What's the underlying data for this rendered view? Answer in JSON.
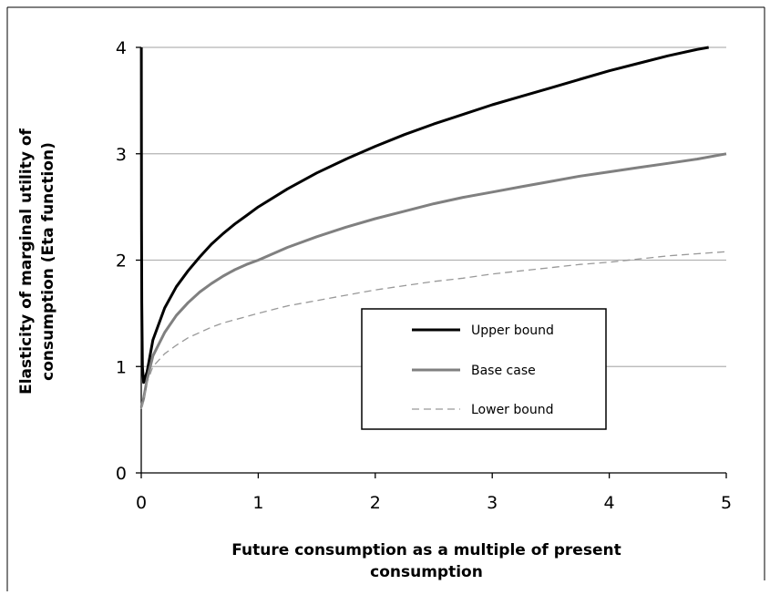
{
  "chart_data": {
    "type": "line",
    "title": "",
    "xlabel": [
      "Future consumption as a multiple of present",
      "consumption"
    ],
    "ylabel": [
      "Elasticity of marginal utility of",
      "consumption (Eta function)"
    ],
    "xlim": [
      0,
      5
    ],
    "ylim": [
      0,
      4
    ],
    "x_ticks": [
      "0",
      "1",
      "2",
      "3",
      "4",
      "5"
    ],
    "y_ticks": [
      "0",
      "1",
      "2",
      "3",
      "4"
    ],
    "grid": "horizontal",
    "legend_position": "center-right",
    "series": [
      {
        "name": "Upper bound",
        "color": "#000000",
        "style": "solid",
        "points": [
          [
            0.001,
            4.0
          ],
          [
            0.002,
            2.4
          ],
          [
            0.005,
            1.6
          ],
          [
            0.01,
            1.0
          ],
          [
            0.02,
            0.85
          ],
          [
            0.05,
            0.95
          ],
          [
            0.1,
            1.25
          ],
          [
            0.2,
            1.55
          ],
          [
            0.3,
            1.75
          ],
          [
            0.4,
            1.9
          ],
          [
            0.5,
            2.03
          ],
          [
            0.6,
            2.15
          ],
          [
            0.7,
            2.25
          ],
          [
            0.8,
            2.34
          ],
          [
            0.9,
            2.42
          ],
          [
            1.0,
            2.5
          ],
          [
            1.25,
            2.67
          ],
          [
            1.5,
            2.82
          ],
          [
            1.75,
            2.95
          ],
          [
            2.0,
            3.07
          ],
          [
            2.25,
            3.18
          ],
          [
            2.5,
            3.28
          ],
          [
            2.75,
            3.37
          ],
          [
            3.0,
            3.46
          ],
          [
            3.25,
            3.54
          ],
          [
            3.5,
            3.62
          ],
          [
            3.75,
            3.7
          ],
          [
            4.0,
            3.78
          ],
          [
            4.25,
            3.85
          ],
          [
            4.5,
            3.92
          ],
          [
            4.75,
            3.98
          ],
          [
            4.85,
            4.0
          ]
        ]
      },
      {
        "name": "Base case",
        "color": "#808080",
        "style": "solid",
        "points": [
          [
            0.001,
            0.62
          ],
          [
            0.02,
            0.7
          ],
          [
            0.05,
            0.88
          ],
          [
            0.1,
            1.1
          ],
          [
            0.2,
            1.32
          ],
          [
            0.3,
            1.48
          ],
          [
            0.4,
            1.6
          ],
          [
            0.5,
            1.7
          ],
          [
            0.6,
            1.78
          ],
          [
            0.7,
            1.85
          ],
          [
            0.8,
            1.91
          ],
          [
            0.9,
            1.96
          ],
          [
            1.0,
            2.0
          ],
          [
            1.25,
            2.12
          ],
          [
            1.5,
            2.22
          ],
          [
            1.75,
            2.31
          ],
          [
            2.0,
            2.39
          ],
          [
            2.25,
            2.46
          ],
          [
            2.5,
            2.53
          ],
          [
            2.75,
            2.59
          ],
          [
            3.0,
            2.64
          ],
          [
            3.25,
            2.69
          ],
          [
            3.5,
            2.74
          ],
          [
            3.75,
            2.79
          ],
          [
            4.0,
            2.83
          ],
          [
            4.25,
            2.87
          ],
          [
            4.5,
            2.91
          ],
          [
            4.75,
            2.95
          ],
          [
            5.0,
            3.0
          ]
        ]
      },
      {
        "name": "Lower bound",
        "color": "#999999",
        "style": "dashed",
        "points": [
          [
            0.001,
            0.6
          ],
          [
            0.02,
            0.68
          ],
          [
            0.05,
            0.85
          ],
          [
            0.1,
            1.0
          ],
          [
            0.2,
            1.12
          ],
          [
            0.3,
            1.2
          ],
          [
            0.4,
            1.27
          ],
          [
            0.5,
            1.32
          ],
          [
            0.6,
            1.37
          ],
          [
            0.7,
            1.41
          ],
          [
            0.8,
            1.44
          ],
          [
            0.9,
            1.47
          ],
          [
            1.0,
            1.5
          ],
          [
            1.25,
            1.57
          ],
          [
            1.5,
            1.62
          ],
          [
            1.75,
            1.67
          ],
          [
            2.0,
            1.72
          ],
          [
            2.25,
            1.76
          ],
          [
            2.5,
            1.8
          ],
          [
            2.75,
            1.83
          ],
          [
            3.0,
            1.87
          ],
          [
            3.25,
            1.9
          ],
          [
            3.5,
            1.93
          ],
          [
            3.75,
            1.96
          ],
          [
            4.0,
            1.98
          ],
          [
            4.25,
            2.01
          ],
          [
            4.5,
            2.04
          ],
          [
            4.75,
            2.06
          ],
          [
            5.0,
            2.08
          ]
        ]
      }
    ]
  }
}
